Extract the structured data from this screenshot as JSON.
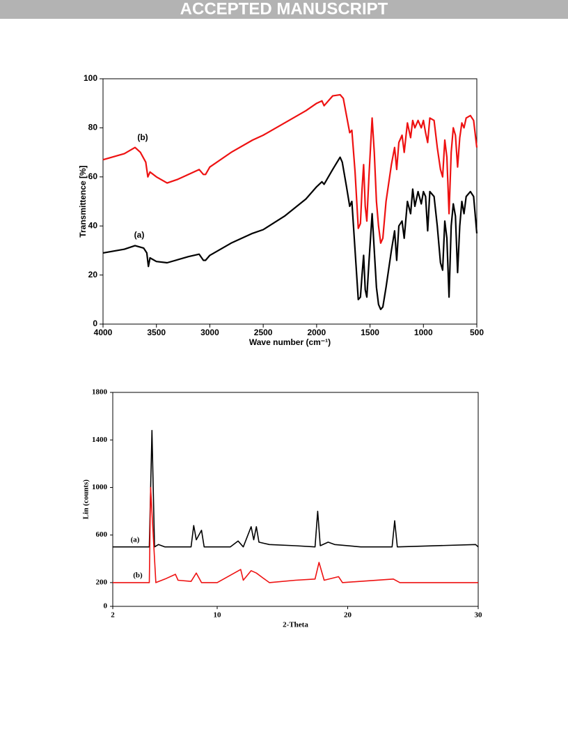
{
  "header": {
    "title": "ACCEPTED MANUSCRIPT"
  },
  "chart_data": [
    {
      "type": "line",
      "xlabel": "Wave number (cm⁻¹)",
      "ylabel": "Transmittence [%]",
      "xlim": [
        4000,
        500
      ],
      "xticks": [
        4000,
        3500,
        3000,
        2500,
        2000,
        1500,
        1000,
        500
      ],
      "ylim": [
        0,
        100
      ],
      "yticks": [
        0,
        20,
        40,
        60,
        80,
        100
      ],
      "series": [
        {
          "name": "(a)",
          "color": "#000000",
          "x": [
            4000,
            3800,
            3700,
            3620,
            3590,
            3575,
            3560,
            3500,
            3400,
            3200,
            3100,
            3060,
            3040,
            3000,
            2800,
            2600,
            2500,
            2300,
            2100,
            2000,
            1950,
            1930,
            1850,
            1780,
            1760,
            1720,
            1690,
            1670,
            1640,
            1610,
            1590,
            1575,
            1560,
            1545,
            1530,
            1510,
            1480,
            1460,
            1440,
            1420,
            1400,
            1380,
            1350,
            1300,
            1270,
            1250,
            1230,
            1200,
            1180,
            1150,
            1120,
            1100,
            1080,
            1050,
            1020,
            1000,
            980,
            960,
            940,
            900,
            870,
            840,
            820,
            800,
            780,
            760,
            740,
            720,
            700,
            680,
            660,
            640,
            620,
            600,
            560,
            530,
            500
          ],
          "values": [
            29,
            30.5,
            32,
            31,
            29,
            23.5,
            27,
            25.5,
            25,
            27.5,
            28.5,
            26,
            26,
            28,
            33,
            37,
            38.5,
            44,
            51,
            56,
            58,
            57,
            63,
            68,
            66,
            56,
            48,
            50,
            30,
            10,
            11,
            20,
            28,
            14,
            11,
            25,
            45,
            30,
            15,
            8,
            6,
            7,
            15,
            30,
            38,
            26,
            40,
            42,
            35,
            50,
            45,
            55,
            48,
            54,
            49,
            54,
            52,
            38,
            54,
            52,
            40,
            25,
            22,
            42,
            35,
            11,
            40,
            49,
            44,
            21,
            40,
            50,
            45,
            52,
            54,
            52,
            37
          ]
        },
        {
          "name": "(b)",
          "color": "#ee1111",
          "x": [
            4000,
            3800,
            3700,
            3650,
            3600,
            3580,
            3560,
            3500,
            3400,
            3300,
            3100,
            3060,
            3040,
            3000,
            2800,
            2600,
            2500,
            2300,
            2100,
            2000,
            1950,
            1930,
            1850,
            1780,
            1750,
            1720,
            1690,
            1670,
            1640,
            1610,
            1590,
            1575,
            1560,
            1545,
            1530,
            1510,
            1480,
            1460,
            1440,
            1420,
            1400,
            1380,
            1350,
            1300,
            1270,
            1250,
            1230,
            1200,
            1180,
            1150,
            1120,
            1100,
            1080,
            1050,
            1020,
            1000,
            980,
            960,
            940,
            900,
            870,
            840,
            820,
            800,
            780,
            760,
            740,
            720,
            700,
            680,
            660,
            640,
            620,
            600,
            560,
            530,
            500
          ],
          "values": [
            67,
            69.5,
            72,
            70,
            66,
            60,
            62,
            60,
            57.5,
            59,
            63,
            61,
            61,
            64,
            70,
            75,
            77,
            82,
            87,
            90,
            91,
            89,
            93,
            93.5,
            92,
            85,
            78,
            79,
            62,
            39,
            41,
            55,
            65,
            48,
            42,
            60,
            84,
            70,
            50,
            40,
            33,
            35,
            50,
            65,
            72,
            63,
            74,
            77,
            70,
            82,
            76,
            83,
            80,
            83,
            80,
            83,
            78,
            74,
            84,
            83,
            72,
            63,
            60,
            75,
            68,
            45,
            70,
            80,
            77,
            64,
            76,
            82,
            80,
            84,
            85,
            83,
            72
          ]
        }
      ]
    },
    {
      "type": "line",
      "xlabel": "2-Theta",
      "ylabel": "Lin (counts)",
      "xlim": [
        2,
        30
      ],
      "xticks": [
        2,
        10,
        20,
        30
      ],
      "ylim": [
        0,
        1800
      ],
      "yticks": [
        0,
        200,
        600,
        1000,
        1400,
        1800
      ],
      "series": [
        {
          "name": "(a)",
          "color": "#000000",
          "x": [
            2,
            4.5,
            4.8,
            5.0,
            5.2,
            5.5,
            6,
            8,
            8.2,
            8.4,
            8.8,
            9,
            11,
            11.6,
            12,
            12.6,
            12.8,
            13,
            13.2,
            14,
            16,
            17.5,
            17.7,
            17.9,
            18.5,
            19,
            21,
            23.4,
            23.6,
            23.8,
            29.8,
            30
          ],
          "values": [
            500,
            500,
            500,
            1480,
            500,
            520,
            500,
            500,
            680,
            560,
            640,
            500,
            500,
            550,
            500,
            670,
            560,
            670,
            540,
            520,
            510,
            500,
            800,
            510,
            540,
            520,
            500,
            500,
            720,
            500,
            520,
            500
          ]
        },
        {
          "name": "(b)",
          "color": "#ee1111",
          "x": [
            2,
            4.8,
            4.9,
            5.1,
            5.3,
            6,
            6.8,
            7,
            8,
            8.4,
            8.8,
            10,
            11.8,
            12,
            12.6,
            13,
            13.5,
            14,
            16,
            17.5,
            17.8,
            18.2,
            19.3,
            19.6,
            23.5,
            24,
            30
          ],
          "values": [
            200,
            200,
            1000,
            600,
            200,
            230,
            270,
            220,
            210,
            280,
            200,
            200,
            310,
            220,
            300,
            280,
            240,
            200,
            220,
            230,
            370,
            220,
            250,
            200,
            230,
            200,
            200
          ]
        }
      ]
    }
  ]
}
